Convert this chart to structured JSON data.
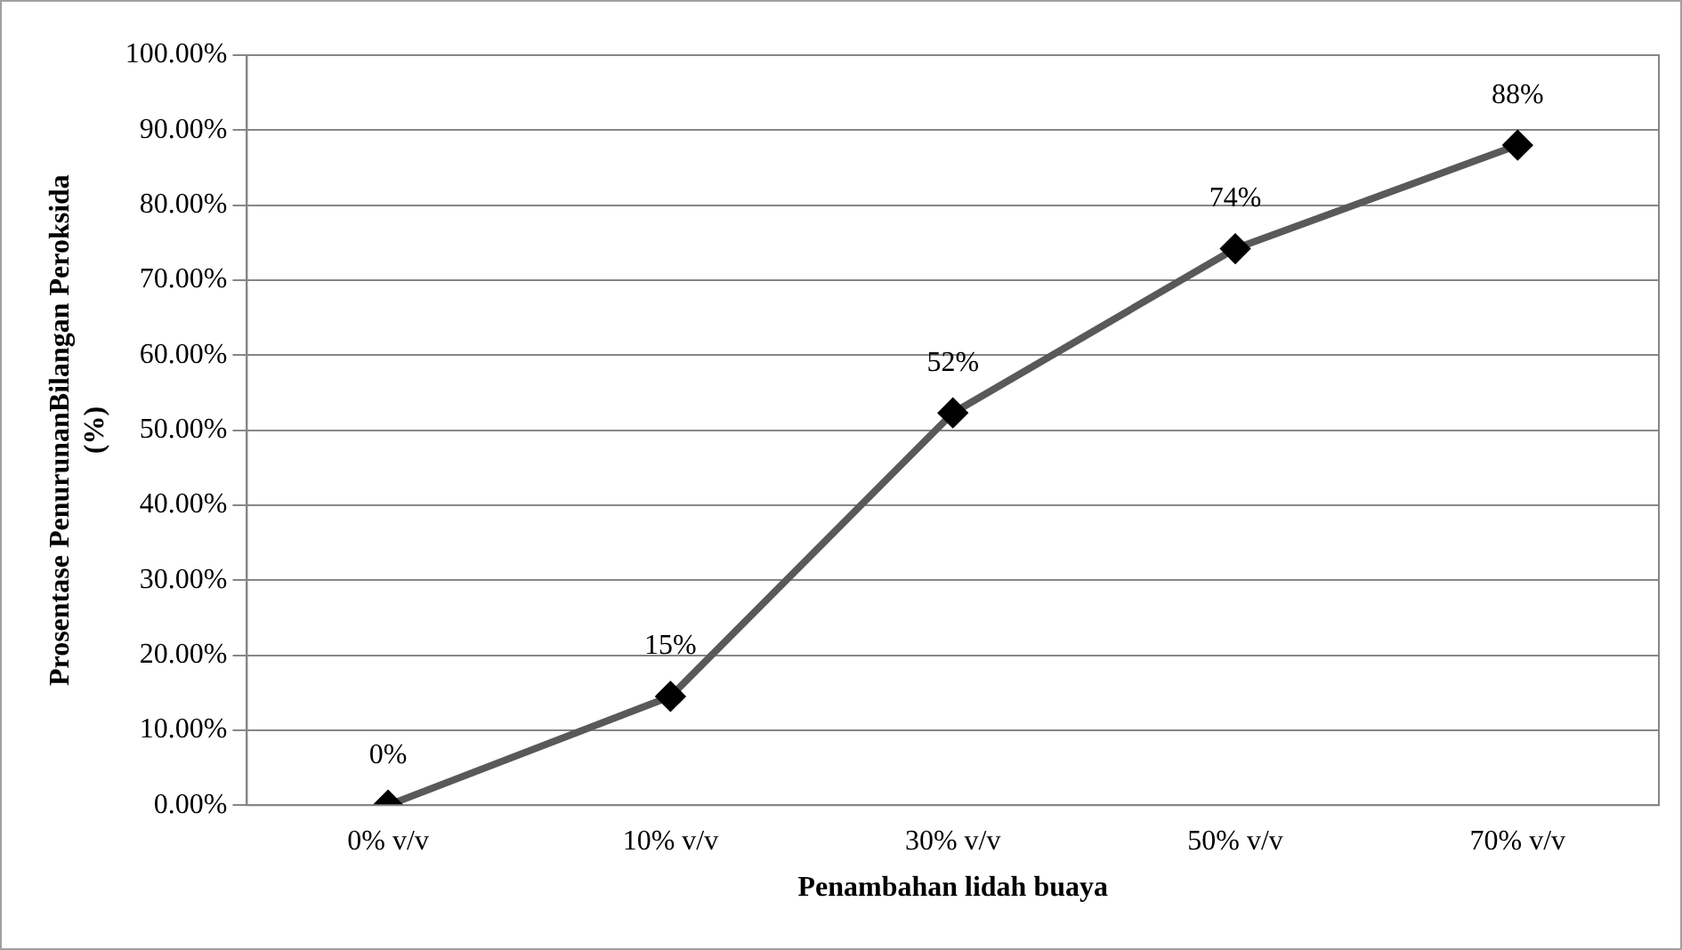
{
  "chart_data": {
    "type": "line",
    "xlabel": "Penambahan lidah buaya",
    "ylabel": "Prosentase PenurunanBilangan Peroksida (%)",
    "categories": [
      "0% v/v",
      "10% v/v",
      "30% v/v",
      "50% v/v",
      "70% v/v"
    ],
    "series": [
      {
        "color": "#595959",
        "values": [
          0,
          14.5,
          52.3,
          74.2,
          88.0
        ],
        "value_labels": [
          "0%",
          "15%",
          "52%",
          "74%",
          "88%"
        ]
      }
    ],
    "ylim": [
      0,
      100
    ],
    "yticks": [
      {
        "value": 0,
        "label": "0.00%"
      },
      {
        "value": 10,
        "label": "10.00%"
      },
      {
        "value": 20,
        "label": "20.00%"
      },
      {
        "value": 30,
        "label": "30.00%"
      },
      {
        "value": 40,
        "label": "40.00%"
      },
      {
        "value": 50,
        "label": "50.00%"
      },
      {
        "value": 60,
        "label": "60.00%"
      },
      {
        "value": 70,
        "label": "70.00%"
      },
      {
        "value": 80,
        "label": "80.00%"
      },
      {
        "value": 90,
        "label": "90.00%"
      },
      {
        "value": 100,
        "label": "100.00%"
      }
    ],
    "grid": "y",
    "legend": false,
    "marker": "diamond",
    "line_style": "solid"
  }
}
